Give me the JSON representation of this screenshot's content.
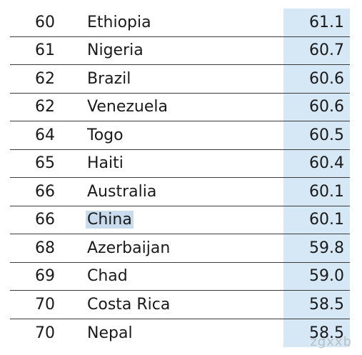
{
  "rows": [
    {
      "rank": "60",
      "country": "Ethiopia",
      "score": "61.1"
    },
    {
      "rank": "61",
      "country": "Nigeria",
      "score": "60.7"
    },
    {
      "rank": "62",
      "country": "Brazil",
      "score": "60.6"
    },
    {
      "rank": "62",
      "country": "Venezuela",
      "score": "60.6"
    },
    {
      "rank": "64",
      "country": "Togo",
      "score": "60.5"
    },
    {
      "rank": "65",
      "country": "Haiti",
      "score": "60.4"
    },
    {
      "rank": "66",
      "country": "Australia",
      "score": "60.1"
    },
    {
      "rank": "66",
      "country": "China",
      "score": "60.1"
    },
    {
      "rank": "68",
      "country": "Azerbaijan",
      "score": "59.8"
    },
    {
      "rank": "69",
      "country": "Chad",
      "score": "59.0"
    },
    {
      "rank": "70",
      "country": "Costa Rica",
      "score": "58.5"
    },
    {
      "rank": "70",
      "country": "Nepal",
      "score": "58.5"
    }
  ],
  "highlighted_country": "China",
  "watermark": "zgxxb",
  "colors": {
    "score_column_bg": "#d6e7f6",
    "selection_highlight": "#c8dcee",
    "row_divider": "#3a3a3a"
  }
}
